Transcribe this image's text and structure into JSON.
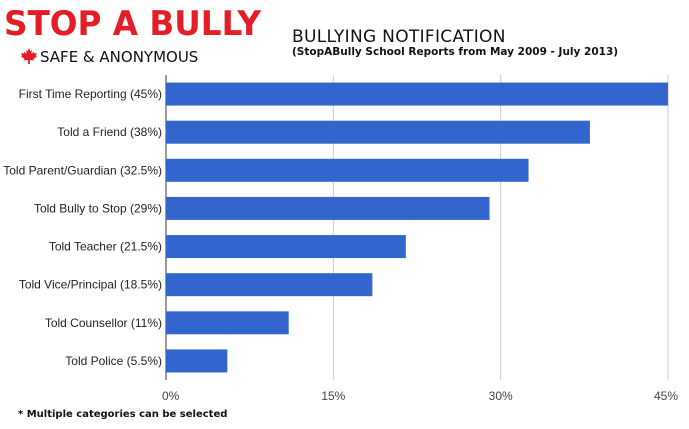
{
  "logo": {
    "main": "STOP A BULLY",
    "sub": "SAFE & ANONYMOUS",
    "icon": "maple-leaf-icon",
    "color": "#e41e26"
  },
  "footnote": "* Multiple categories can be selected",
  "chart_data": {
    "type": "bar",
    "orientation": "horizontal",
    "title": "BULLYING NOTIFICATION",
    "subtitle": "(StopABully School Reports from May 2009 - July 2013)",
    "categories": [
      "First Time Reporting (45%)",
      "Told a Friend (38%)",
      "Told Parent/Guardian (32.5%)",
      "Told Bully to Stop (29%)",
      "Told Teacher (21.5%)",
      "Told Vice/Principal (18.5%)",
      "Told Counsellor (11%)",
      "Told Police (5.5%)"
    ],
    "values": [
      45,
      38,
      32.5,
      29,
      21.5,
      18.5,
      11,
      5.5
    ],
    "xlim": [
      0,
      45
    ],
    "xticks": [
      0,
      15,
      30,
      45
    ],
    "xtick_labels": [
      "0%",
      "15%",
      "30%",
      "45%"
    ],
    "grid": true,
    "bar_color": "#3366cc"
  }
}
